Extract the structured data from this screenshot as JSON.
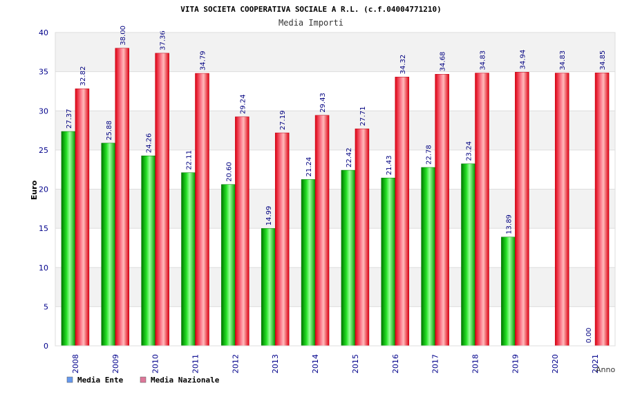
{
  "chart_data": {
    "type": "bar",
    "title": "VITA SOCIETA COOPERATIVA SOCIALE A R.L. (c.f.04004771210)",
    "subtitle": "Media Importi",
    "xlabel": "Anno",
    "ylabel": "Euro",
    "ylim": [
      0,
      40
    ],
    "yticks": [
      "0",
      "5",
      "10",
      "15",
      "20",
      "25",
      "30",
      "35",
      "40"
    ],
    "grid": true,
    "legend_position": "bottom-left",
    "categories": [
      "2008",
      "2009",
      "2010",
      "2011",
      "2012",
      "2013",
      "2014",
      "2015",
      "2016",
      "2017",
      "2018",
      "2019",
      "2020",
      "2021"
    ],
    "series": [
      {
        "name": "Media Ente",
        "legend_color": "#6699ee",
        "bar_color": "#00bb00",
        "values": [
          27.37,
          25.88,
          24.26,
          22.11,
          20.6,
          14.99,
          21.24,
          22.42,
          21.43,
          22.78,
          23.24,
          13.89,
          null,
          0.0
        ],
        "labels": [
          "27.37",
          "25.88",
          "24.26",
          "22.11",
          "20.60",
          "14.99",
          "21.24",
          "22.42",
          "21.43",
          "22.78",
          "23.24",
          "13.89",
          "",
          "0.00"
        ]
      },
      {
        "name": "Media Nazionale",
        "legend_color": "#dd7799",
        "bar_color": "#ee1122",
        "values": [
          32.82,
          38.0,
          37.36,
          34.79,
          29.24,
          27.19,
          29.43,
          27.71,
          34.32,
          34.68,
          34.83,
          34.94,
          34.83,
          34.85
        ],
        "labels": [
          "32.82",
          "38.00",
          "37.36",
          "34.79",
          "29.24",
          "27.19",
          "29.43",
          "27.71",
          "34.32",
          "34.68",
          "34.83",
          "34.94",
          "34.83",
          "34.85"
        ]
      }
    ]
  }
}
